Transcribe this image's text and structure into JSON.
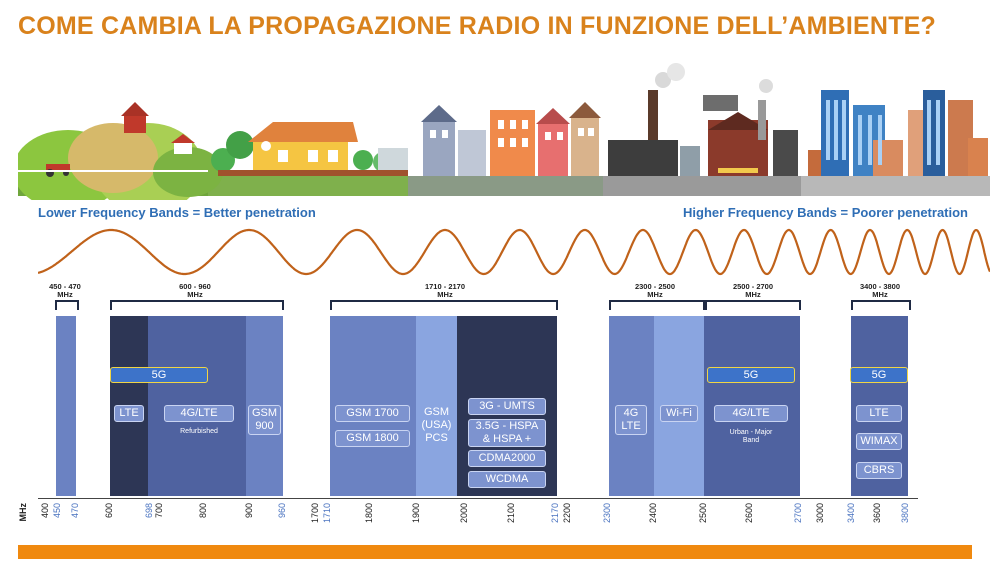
{
  "title": "COME CAMBIA LA PROPAGAZIONE RADIO IN FUNZIONE DELL’AMBIENTE?",
  "captions": {
    "left": "Lower Frequency Bands = Better penetration",
    "right": "Higher Frequency Bands = Poorer penetration"
  },
  "colors": {
    "title": "#d9821c",
    "caption": "#2f6eb5",
    "block_light": "#6b82c2",
    "block_mid": "#4f62a0",
    "block_dark": "#2d3655",
    "pill": "#7d93cf",
    "pill_5g": "#3d73c9",
    "accent_bar": "#f0890f"
  },
  "scene": {
    "rural": "farm-illustration",
    "town": "houses-illustration",
    "industrial": "factory-illustration",
    "city": "skyscrapers-illustration"
  },
  "ranges": [
    {
      "label": "450 - 470\nMHz"
    },
    {
      "label": "600 - 960\nMHz"
    },
    {
      "label": "1710 - 2170\nMHz"
    },
    {
      "label": "2300 - 2500\nMHz"
    },
    {
      "label": "2500 - 2700\nMHz"
    },
    {
      "label": "3400 - 3800\nMHz"
    }
  ],
  "bands": {
    "b600": {
      "five_g": "5G",
      "lte": "LTE",
      "lte4g": "4G/LTE",
      "refurbished": "Refurbished",
      "gsm900": "GSM\n900"
    },
    "b1700": {
      "gsm1700": "GSM 1700",
      "gsm1800": "GSM 1800",
      "gsm_usa": "GSM\n(USA)\nPCS",
      "umts": "3G - UMTS",
      "hspa": "3.5G - HSPA\n& HSPA +",
      "cdma": "CDMA2000",
      "wcdma": "WCDMA"
    },
    "b2300": {
      "lte4g": "4G\nLTE",
      "wifi": "Wi-Fi"
    },
    "b2500": {
      "five_g": "5G",
      "lte4g": "4G/LTE",
      "urban": "Urban - Major\nBand"
    },
    "b3400": {
      "five_g": "5G",
      "lte": "LTE",
      "wimax": "WIMAX",
      "cbrs": "CBRS"
    }
  },
  "axis": {
    "unit": "MHz",
    "ticks": [
      {
        "t": "400",
        "hl": false
      },
      {
        "t": "450",
        "hl": true
      },
      {
        "t": "470",
        "hl": true
      },
      {
        "t": "600",
        "hl": false
      },
      {
        "t": "698",
        "hl": true
      },
      {
        "t": "700",
        "hl": false
      },
      {
        "t": "800",
        "hl": false
      },
      {
        "t": "900",
        "hl": false
      },
      {
        "t": "960",
        "hl": true
      },
      {
        "t": "1700",
        "hl": false
      },
      {
        "t": "1710",
        "hl": true
      },
      {
        "t": "1800",
        "hl": false
      },
      {
        "t": "1900",
        "hl": false
      },
      {
        "t": "2000",
        "hl": false
      },
      {
        "t": "2100",
        "hl": false
      },
      {
        "t": "2170",
        "hl": true
      },
      {
        "t": "2200",
        "hl": false
      },
      {
        "t": "2300",
        "hl": true
      },
      {
        "t": "2400",
        "hl": false
      },
      {
        "t": "2500",
        "hl": false
      },
      {
        "t": "2600",
        "hl": false
      },
      {
        "t": "2700",
        "hl": true
      },
      {
        "t": "3000",
        "hl": false
      },
      {
        "t": "3400",
        "hl": true
      },
      {
        "t": "3600",
        "hl": false
      },
      {
        "t": "3800",
        "hl": true
      }
    ]
  }
}
